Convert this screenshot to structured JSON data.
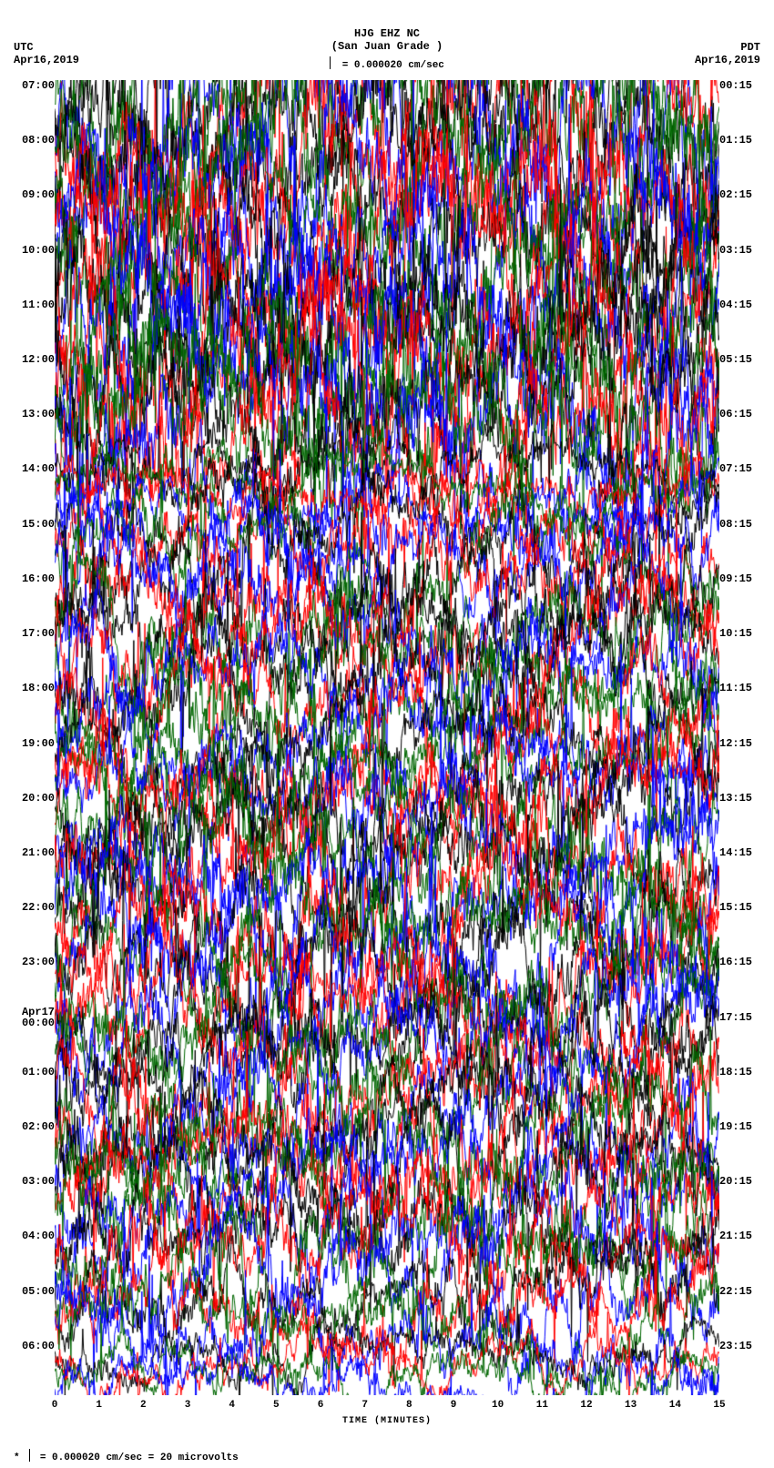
{
  "header": {
    "station_code": "HJG EHZ NC",
    "station_name": "(San Juan Grade )",
    "left_tz": "UTC",
    "left_date": "Apr16,2019",
    "right_tz": "PDT",
    "right_date": "Apr16,2019",
    "scale_text": "= 0.000020 cm/sec"
  },
  "plot": {
    "type": "helicorder",
    "background_color": "#ffffff",
    "trace_colors_cycle": [
      "#000000",
      "#ff0000",
      "#006600",
      "#0000ff"
    ],
    "n_rows": 24,
    "minutes_per_row": 15,
    "left_labels": [
      "07:00",
      "08:00",
      "09:00",
      "10:00",
      "11:00",
      "12:00",
      "13:00",
      "14:00",
      "15:00",
      "16:00",
      "17:00",
      "18:00",
      "19:00",
      "20:00",
      "21:00",
      "22:00",
      "23:00",
      "Apr17\n00:00",
      "01:00",
      "02:00",
      "03:00",
      "04:00",
      "05:00",
      "06:00"
    ],
    "right_labels": [
      "00:15",
      "01:15",
      "02:15",
      "03:15",
      "04:15",
      "05:15",
      "06:15",
      "07:15",
      "08:15",
      "09:15",
      "10:15",
      "11:15",
      "12:15",
      "13:15",
      "14:15",
      "15:15",
      "16:15",
      "17:15",
      "18:15",
      "19:15",
      "20:15",
      "21:15",
      "22:15",
      "23:15"
    ],
    "row_amplitude_profile": [
      1.6,
      1.6,
      1.5,
      1.5,
      1.5,
      1.5,
      1.4,
      0.6,
      0.9,
      1.0,
      1.0,
      1.0,
      0.9,
      1.1,
      1.1,
      1.1,
      1.0,
      1.0,
      1.0,
      1.0,
      1.0,
      1.0,
      0.8,
      0.5
    ],
    "samples_per_row": 900,
    "amplitude_scale": 55,
    "random_seed": 12345,
    "grid_color": "rgba(255,255,255,0.12)",
    "xaxis": {
      "label": "TIME (MINUTES)",
      "ticks": [
        0,
        1,
        2,
        3,
        4,
        5,
        6,
        7,
        8,
        9,
        10,
        11,
        12,
        13,
        14,
        15
      ]
    }
  },
  "footer": {
    "text_prefix": "*",
    "text": "= 0.000020 cm/sec =    20 microvolts"
  }
}
